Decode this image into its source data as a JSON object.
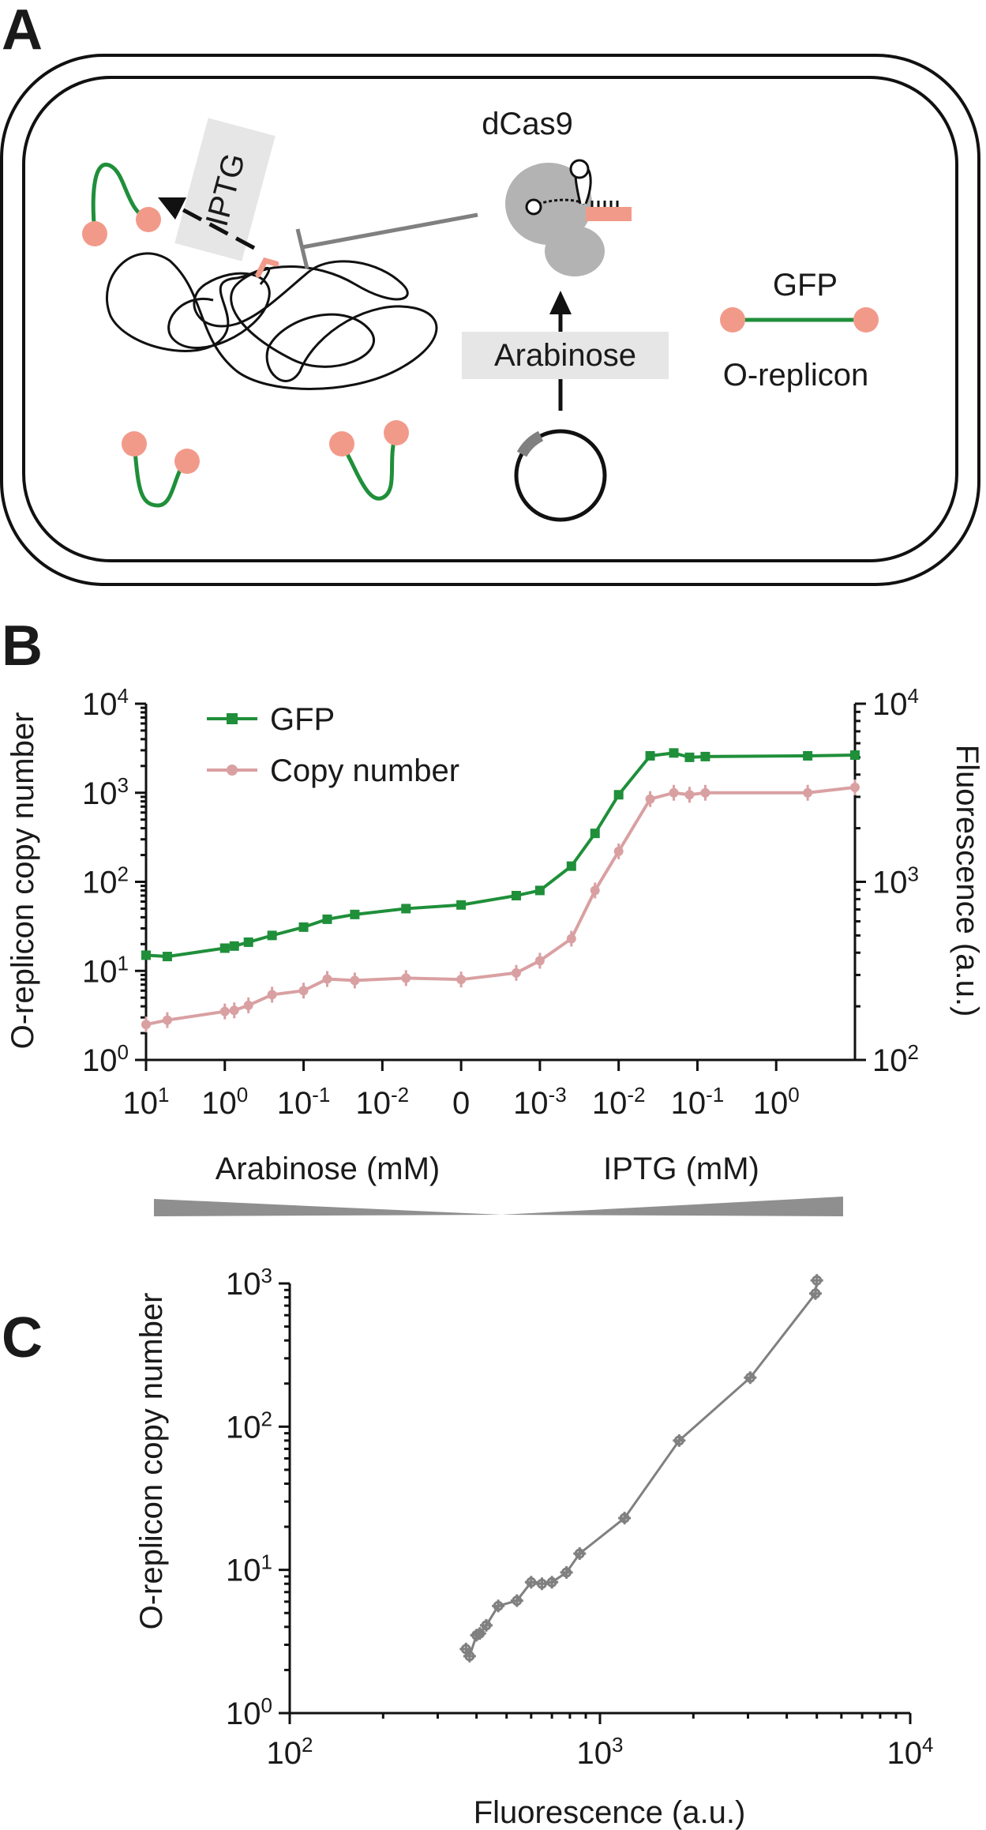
{
  "panels": {
    "a": "A",
    "b": "B",
    "c": "C"
  },
  "schematic": {
    "dcas9_label": "dCas9",
    "iptg_label": "IPTG",
    "arabinose_label": "Arabinose",
    "legend_gfp": "GFP",
    "legend_oreplicon": "O-replicon"
  },
  "colors": {
    "gfp": "#1f8f3a",
    "copy_number": "#d9a0a2",
    "oreplicon_dot": "#f29a8a",
    "panel_c": "#808080",
    "dcas9_body": "#b3b3b3",
    "label_box": "#e6e6e6"
  },
  "chart_data": [
    {
      "type": "line",
      "panel": "B",
      "x_tick_labels": [
        {
          "base": "10",
          "exp": "1"
        },
        {
          "base": "10",
          "exp": "0"
        },
        {
          "base": "10",
          "exp": "-1"
        },
        {
          "base": "10",
          "exp": "-2"
        },
        {
          "base": "0",
          "exp": ""
        },
        {
          "base": "10",
          "exp": "-3"
        },
        {
          "base": "10",
          "exp": "-2"
        },
        {
          "base": "10",
          "exp": "-1"
        },
        {
          "base": "10",
          "exp": "0"
        }
      ],
      "x_group_labels": [
        "Arabinose (mM)",
        "IPTG (mM)"
      ],
      "ylabel_left": "O-replicon copy number",
      "ylabel_right": "Fluorescence (a.u.)",
      "yscale": "log",
      "ylim_left": [
        1,
        10000
      ],
      "ylim_right": [
        100,
        10000
      ],
      "yticks_left": [
        {
          "base": "10",
          "exp": "0"
        },
        {
          "base": "10",
          "exp": "1"
        },
        {
          "base": "10",
          "exp": "2"
        },
        {
          "base": "10",
          "exp": "3"
        },
        {
          "base": "10",
          "exp": "4"
        }
      ],
      "yticks_right": [
        {
          "base": "10",
          "exp": "2"
        },
        {
          "base": "10",
          "exp": "3"
        },
        {
          "base": "10",
          "exp": "4"
        }
      ],
      "legend_position": "top-left",
      "series": [
        {
          "name": "GFP",
          "axis": "left",
          "marker": "square",
          "x": [
            0,
            0.27,
            1,
            1.12,
            1.3,
            1.6,
            2,
            2.3,
            2.65,
            3.3,
            4,
            4.7,
            5,
            5.4,
            5.7,
            6,
            6.4,
            6.7,
            6.9,
            7.1,
            8.4,
            9
          ],
          "y": [
            15,
            14.5,
            18,
            19,
            21,
            25,
            31,
            38,
            43,
            50,
            55,
            70,
            80,
            150,
            350,
            950,
            2600,
            2800,
            2500,
            2550,
            2600,
            2650
          ]
        },
        {
          "name": "Copy number",
          "axis": "left",
          "marker": "circle",
          "x": [
            0,
            0.27,
            1,
            1.12,
            1.3,
            1.6,
            2,
            2.3,
            2.65,
            3.3,
            4,
            4.7,
            5,
            5.4,
            5.7,
            6,
            6.4,
            6.7,
            6.9,
            7.1,
            8.4,
            9
          ],
          "y": [
            2.5,
            2.8,
            3.5,
            3.6,
            4.1,
            5.4,
            6,
            8.1,
            7.8,
            8.3,
            8.0,
            9.5,
            13,
            23,
            80,
            220,
            850,
            1000,
            950,
            1000,
            1000,
            1150
          ]
        }
      ]
    },
    {
      "type": "scatter",
      "panel": "C",
      "xlabel": "Fluorescence (a.u.)",
      "ylabel": "O-replicon copy number",
      "xscale": "log",
      "yscale": "log",
      "xlim": [
        100,
        10000
      ],
      "ylim": [
        1,
        1000
      ],
      "xticks": [
        {
          "base": "10",
          "exp": "2"
        },
        {
          "base": "10",
          "exp": "3"
        },
        {
          "base": "10",
          "exp": "4"
        }
      ],
      "yticks": [
        {
          "base": "10",
          "exp": "0"
        },
        {
          "base": "10",
          "exp": "1"
        },
        {
          "base": "10",
          "exp": "2"
        },
        {
          "base": "10",
          "exp": "3"
        }
      ],
      "series": [
        {
          "x": [
            370,
            380,
            400,
            410,
            430,
            470,
            540,
            600,
            650,
            700,
            780,
            860,
            1200,
            1800,
            3050,
            4950,
            5000
          ],
          "y": [
            2.8,
            2.5,
            3.5,
            3.6,
            4.1,
            5.6,
            6.1,
            8.2,
            8.0,
            8.2,
            9.6,
            13,
            23,
            80,
            220,
            850,
            1050
          ]
        }
      ]
    }
  ]
}
